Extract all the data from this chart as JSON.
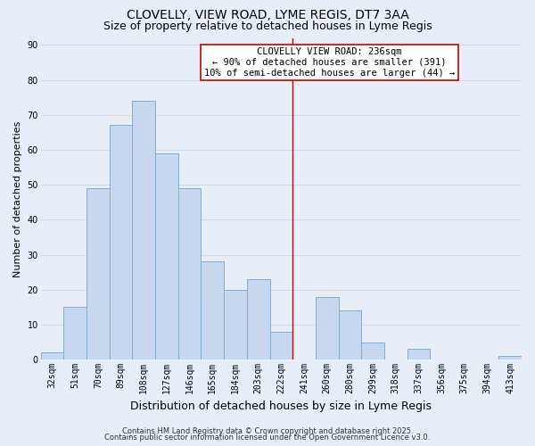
{
  "title": "CLOVELLY, VIEW ROAD, LYME REGIS, DT7 3AA",
  "subtitle": "Size of property relative to detached houses in Lyme Regis",
  "xlabel": "Distribution of detached houses by size in Lyme Regis",
  "ylabel": "Number of detached properties",
  "bar_labels": [
    "32sqm",
    "51sqm",
    "70sqm",
    "89sqm",
    "108sqm",
    "127sqm",
    "146sqm",
    "165sqm",
    "184sqm",
    "203sqm",
    "222sqm",
    "241sqm",
    "260sqm",
    "280sqm",
    "299sqm",
    "318sqm",
    "337sqm",
    "356sqm",
    "375sqm",
    "394sqm",
    "413sqm"
  ],
  "bar_values": [
    2,
    15,
    49,
    67,
    74,
    59,
    49,
    28,
    20,
    23,
    8,
    0,
    18,
    14,
    5,
    0,
    3,
    0,
    0,
    0,
    1
  ],
  "bar_color": "#c5d8f0",
  "bar_edge_color": "#7bafd4",
  "vline_x": 10.5,
  "vline_color": "#cc0000",
  "annotation_title": "CLOVELLY VIEW ROAD: 236sqm",
  "annotation_line1": "← 90% of detached houses are smaller (391)",
  "annotation_line2": "10% of semi-detached houses are larger (44) →",
  "ylim": [
    0,
    92
  ],
  "yticks": [
    0,
    10,
    20,
    30,
    40,
    50,
    60,
    70,
    80,
    90
  ],
  "footer1": "Contains HM Land Registry data © Crown copyright and database right 2025.",
  "footer2": "Contains public sector information licensed under the Open Government Licence v3.0.",
  "background_color": "#e8eef8",
  "grid_color": "#d0d8ea",
  "title_fontsize": 10,
  "subtitle_fontsize": 9,
  "xlabel_fontsize": 9,
  "ylabel_fontsize": 8,
  "tick_fontsize": 7,
  "annotation_fontsize": 7.5,
  "footer_fontsize": 6
}
